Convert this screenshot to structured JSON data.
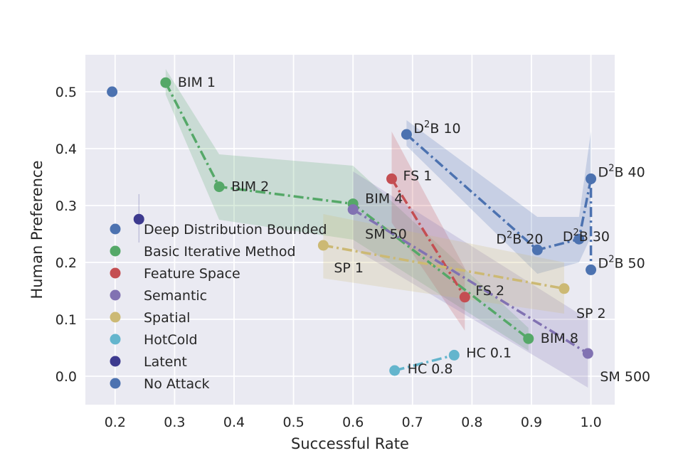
{
  "chart_data": {
    "type": "scatter",
    "xlabel": "Successful Rate",
    "ylabel": "Human Preference",
    "xlim": [
      0.15,
      1.04
    ],
    "ylim": [
      -0.05,
      0.565
    ],
    "xticks": [
      0.2,
      0.3,
      0.4,
      0.5,
      0.6,
      0.7,
      0.8,
      0.9,
      1.0
    ],
    "xtick_labels": [
      "0.2",
      "0.3",
      "0.4",
      "0.5",
      "0.6",
      "0.7",
      "0.8",
      "0.9",
      "1.0"
    ],
    "yticks": [
      0.0,
      0.1,
      0.2,
      0.3,
      0.4,
      0.5
    ],
    "ytick_labels": [
      "0.0",
      "0.1",
      "0.2",
      "0.3",
      "0.4",
      "0.5"
    ],
    "grid": true,
    "legend_position": "left",
    "series": [
      {
        "name": "Deep Distribution Bounded",
        "color": "#4c72b0",
        "points": [
          {
            "x": 0.69,
            "y": 0.425,
            "label": "D²B 10"
          },
          {
            "x": 0.91,
            "y": 0.222,
            "label": "D²B 20"
          },
          {
            "x": 0.98,
            "y": 0.241,
            "label": "D²B 30"
          },
          {
            "x": 1.0,
            "y": 0.347,
            "label": "D²B 40"
          },
          {
            "x": 1.0,
            "y": 0.187,
            "label": "D²B 50"
          }
        ],
        "band": [
          {
            "x": 0.69,
            "lo": 0.405,
            "hi": 0.45
          },
          {
            "x": 0.91,
            "lo": 0.18,
            "hi": 0.28
          },
          {
            "x": 0.98,
            "lo": 0.2,
            "hi": 0.28
          },
          {
            "x": 1.0,
            "lo": 0.245,
            "hi": 0.43
          }
        ]
      },
      {
        "name": "Basic Iterative Method",
        "color": "#55a868",
        "points": [
          {
            "x": 0.285,
            "y": 0.516,
            "label": "BIM 1"
          },
          {
            "x": 0.375,
            "y": 0.333,
            "label": "BIM 2"
          },
          {
            "x": 0.6,
            "y": 0.303,
            "label": "BIM 4"
          },
          {
            "x": 0.895,
            "y": 0.066,
            "label": "BIM 8"
          }
        ],
        "band": [
          {
            "x": 0.285,
            "lo": 0.495,
            "hi": 0.54
          },
          {
            "x": 0.375,
            "lo": 0.275,
            "hi": 0.39
          },
          {
            "x": 0.6,
            "lo": 0.24,
            "hi": 0.37
          },
          {
            "x": 0.895,
            "lo": 0.045,
            "hi": 0.085
          }
        ]
      },
      {
        "name": "Feature Space",
        "color": "#c44e52",
        "points": [
          {
            "x": 0.665,
            "y": 0.347,
            "label": "FS 1"
          },
          {
            "x": 0.788,
            "y": 0.139,
            "label": "FS 2"
          }
        ],
        "band": [
          {
            "x": 0.665,
            "lo": 0.27,
            "hi": 0.43
          },
          {
            "x": 0.788,
            "lo": 0.08,
            "hi": 0.19
          }
        ]
      },
      {
        "name": "Semantic",
        "color": "#8172b2",
        "points": [
          {
            "x": 0.6,
            "y": 0.293,
            "label": "SM 50"
          },
          {
            "x": 0.995,
            "y": 0.04,
            "label": "SM 500"
          }
        ],
        "band": [
          {
            "x": 0.6,
            "lo": 0.225,
            "hi": 0.36
          },
          {
            "x": 0.995,
            "lo": -0.02,
            "hi": 0.1
          }
        ]
      },
      {
        "name": "Spatial",
        "color": "#ccb974",
        "points": [
          {
            "x": 0.55,
            "y": 0.23,
            "label": "SP 1"
          },
          {
            "x": 0.955,
            "y": 0.154,
            "label": "SP 2"
          }
        ],
        "band": [
          {
            "x": 0.55,
            "lo": 0.172,
            "hi": 0.285
          },
          {
            "x": 0.955,
            "lo": 0.11,
            "hi": 0.2
          }
        ]
      },
      {
        "name": "HotCold",
        "color": "#64b5cd",
        "points": [
          {
            "x": 0.67,
            "y": 0.01,
            "label": "HC 0.8"
          },
          {
            "x": 0.77,
            "y": 0.037,
            "label": "HC 0.1"
          }
        ],
        "band": []
      },
      {
        "name": "Latent",
        "color": "#3d3a8f",
        "points": [
          {
            "x": 0.24,
            "y": 0.276,
            "label": ""
          }
        ],
        "band": []
      },
      {
        "name": "No Attack",
        "color": "#4c72b0",
        "points": [
          {
            "x": 0.195,
            "y": 0.5,
            "label": ""
          }
        ],
        "band": []
      }
    ]
  }
}
